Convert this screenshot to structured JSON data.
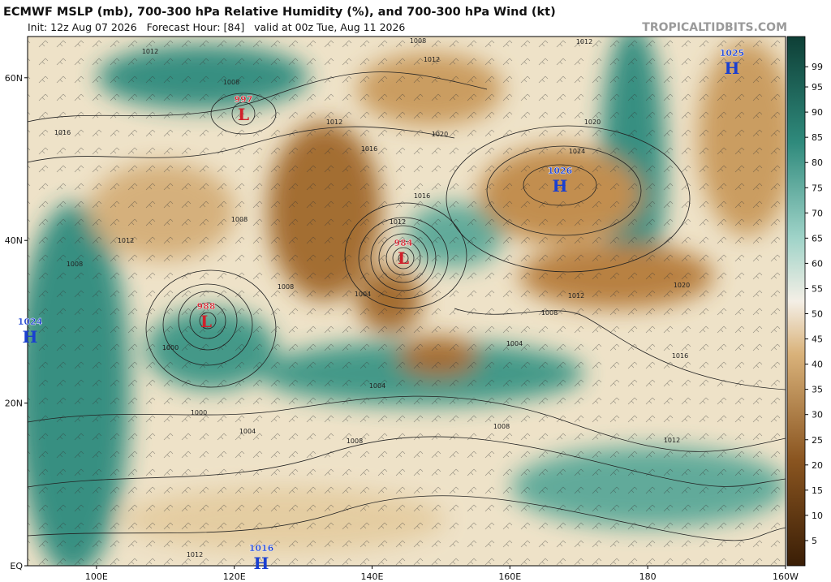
{
  "header": {
    "title": "ECMWF MSLP (mb), 700-300 hPa Relative Humidity (%), and 700-300 hPa Wind (kt)",
    "subtitle": "Init: 12z Aug 07 2026   Forecast Hour: [84]   valid at 00z Tue, Aug 11 2026",
    "source": "TROPICALTIDBITS.COM"
  },
  "map": {
    "lat_ticks": [
      {
        "value": 60,
        "label": "60N"
      },
      {
        "value": 40,
        "label": "40N"
      },
      {
        "value": 20,
        "label": "20N"
      },
      {
        "value": 0,
        "label": "EQ"
      }
    ],
    "lon_ticks": [
      {
        "value": 100,
        "label": "100E"
      },
      {
        "value": 120,
        "label": "120E"
      },
      {
        "value": 140,
        "label": "140E"
      },
      {
        "value": 160,
        "label": "160E"
      },
      {
        "value": 180,
        "label": "180"
      },
      {
        "value": 200,
        "label": "160W"
      }
    ],
    "centers": [
      {
        "type": "L",
        "pressure": 997
      },
      {
        "type": "L",
        "pressure": 984
      },
      {
        "type": "L",
        "pressure": 988
      },
      {
        "type": "H",
        "pressure": 1026
      },
      {
        "type": "H",
        "pressure": 1025
      },
      {
        "type": "H",
        "pressure": 1024
      },
      {
        "type": "H",
        "pressure": 1016
      }
    ],
    "isobar_labels": [
      1008,
      1012,
      1012,
      1008,
      1012,
      1012,
      1016,
      1020,
      1024,
      1020,
      1016,
      1012,
      1008,
      1012,
      1008,
      1004,
      1008,
      1012,
      1016,
      1020,
      1004,
      1004,
      1008,
      1012,
      1008,
      1000,
      1004,
      1000,
      1012,
      1016,
      1008
    ]
  },
  "colorbar": {
    "lim": [
      0,
      100
    ],
    "ticks": [
      5,
      10,
      15,
      20,
      25,
      30,
      35,
      40,
      45,
      50,
      55,
      60,
      65,
      70,
      75,
      80,
      85,
      90,
      95,
      99
    ]
  }
}
